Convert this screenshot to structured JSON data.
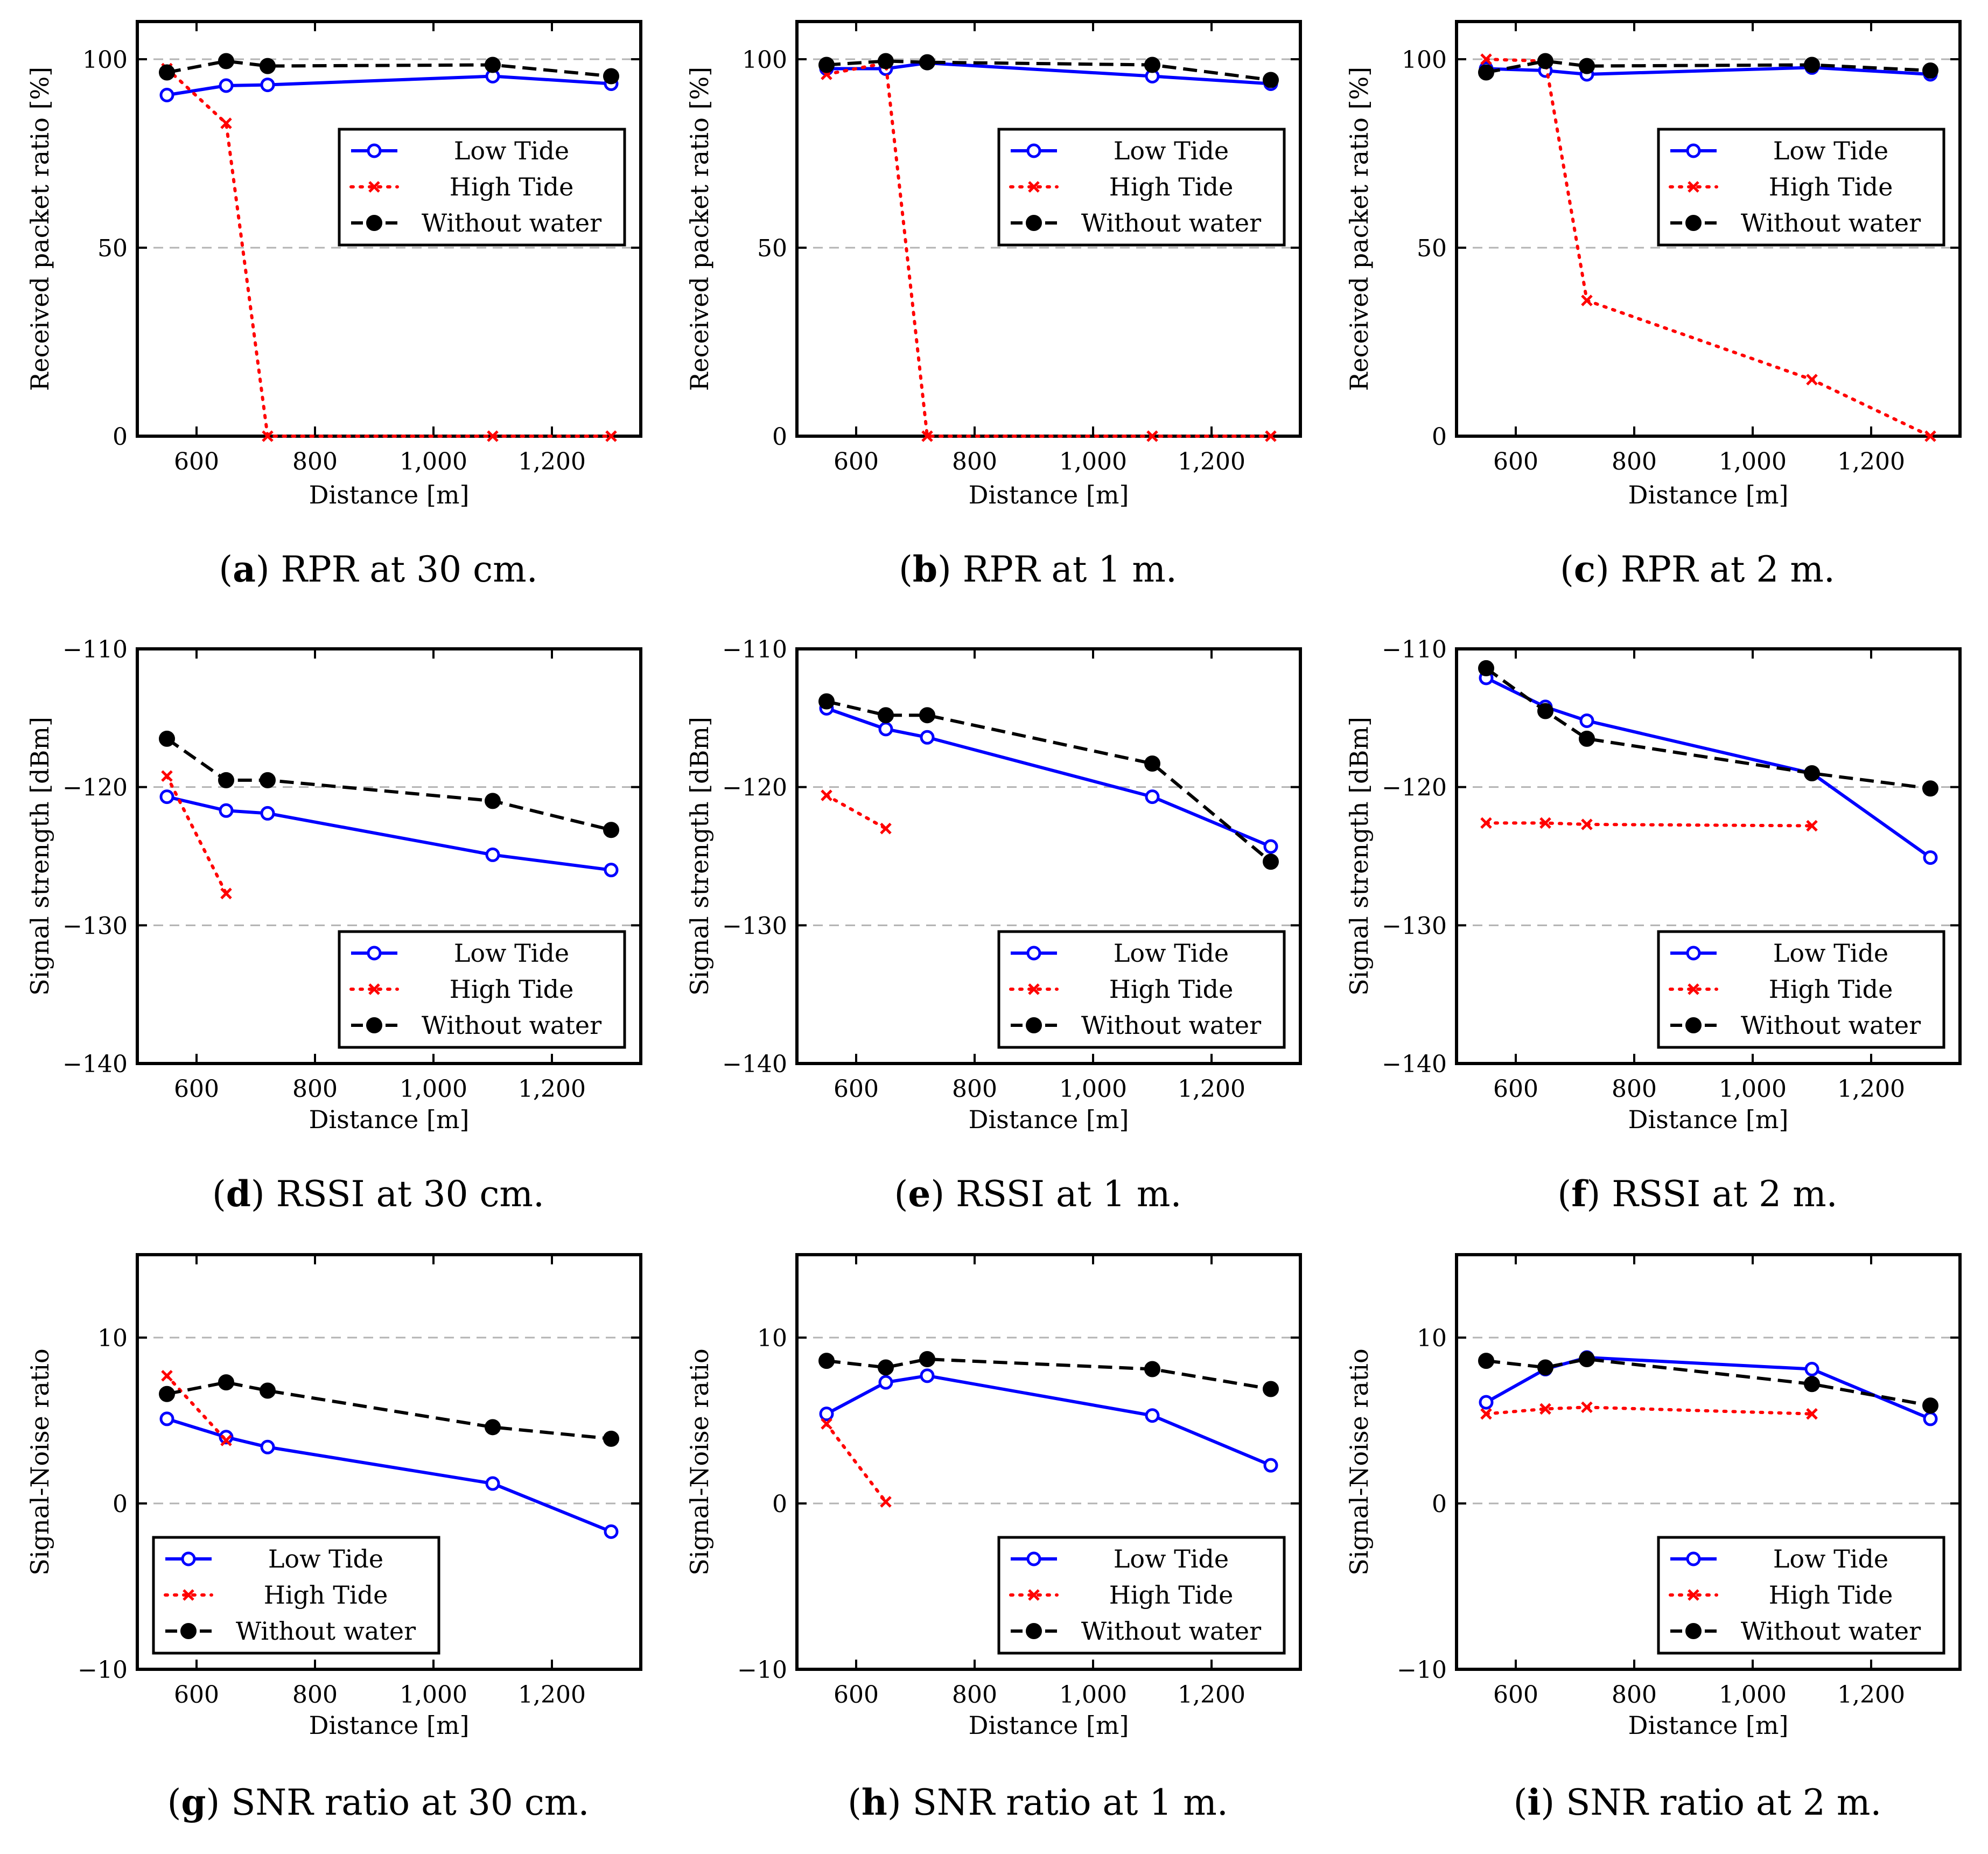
{
  "colors": {
    "low_tide": "#0000ff",
    "high_tide": "#ff0000",
    "without_water": "#000000",
    "grid": "#b3b3b3"
  },
  "legend_labels": [
    "Low Tide",
    "High Tide",
    "Without water"
  ],
  "chart_data": [
    {
      "id": "a",
      "type": "line",
      "caption": {
        "letter": "a",
        "text": ") RPR at 30 cm."
      },
      "xlabel": "Distance [m]",
      "ylabel": "Received packet ratio [%]",
      "xlim": [
        500,
        1350
      ],
      "ylim": [
        0,
        110
      ],
      "xticks": [
        {
          "value": 600,
          "label": "600"
        },
        {
          "value": 800,
          "label": "800"
        },
        {
          "value": 1000,
          "label": "1,000"
        },
        {
          "value": 1200,
          "label": "1,200"
        }
      ],
      "yticks": [
        {
          "value": 0,
          "label": "0"
        },
        {
          "value": 50,
          "label": "50"
        },
        {
          "value": 100,
          "label": "100"
        }
      ],
      "legend_position": "upper-right",
      "series": [
        {
          "name": "Low Tide",
          "x": [
            550,
            650,
            720,
            1100,
            1300
          ],
          "y": [
            90.5,
            93,
            93.2,
            95.5,
            93.5
          ]
        },
        {
          "name": "High Tide",
          "x": [
            550,
            650,
            720,
            1100,
            1300
          ],
          "y": [
            97.5,
            83,
            0,
            0,
            0
          ]
        },
        {
          "name": "Without water",
          "x": [
            550,
            650,
            720,
            1100,
            1300
          ],
          "y": [
            96.5,
            99.5,
            98.2,
            98.5,
            95.5
          ]
        }
      ]
    },
    {
      "id": "b",
      "type": "line",
      "caption": {
        "letter": "b",
        "text": ") RPR at 1 m."
      },
      "xlabel": "Distance [m]",
      "ylabel": "Received packet ratio [%]",
      "xlim": [
        500,
        1350
      ],
      "ylim": [
        0,
        110
      ],
      "xticks": [
        {
          "value": 600,
          "label": "600"
        },
        {
          "value": 800,
          "label": "800"
        },
        {
          "value": 1000,
          "label": "1,000"
        },
        {
          "value": 1200,
          "label": "1,200"
        }
      ],
      "yticks": [
        {
          "value": 0,
          "label": "0"
        },
        {
          "value": 50,
          "label": "50"
        },
        {
          "value": 100,
          "label": "100"
        }
      ],
      "legend_position": "upper-right",
      "series": [
        {
          "name": "Low Tide",
          "x": [
            550,
            650,
            720,
            1100,
            1300
          ],
          "y": [
            97.5,
            97.5,
            99,
            95.5,
            93.5
          ]
        },
        {
          "name": "High Tide",
          "x": [
            550,
            650,
            720,
            1100,
            1300
          ],
          "y": [
            96,
            99,
            0,
            0,
            0
          ]
        },
        {
          "name": "Without water",
          "x": [
            550,
            650,
            720,
            1100,
            1300
          ],
          "y": [
            98.5,
            99.5,
            99.2,
            98.5,
            94.5
          ]
        }
      ]
    },
    {
      "id": "c",
      "type": "line",
      "caption": {
        "letter": "c",
        "text": ") RPR at 2 m."
      },
      "xlabel": "Distance [m]",
      "ylabel": "Received packet ratio [%]",
      "xlim": [
        500,
        1350
      ],
      "ylim": [
        0,
        110
      ],
      "xticks": [
        {
          "value": 600,
          "label": "600"
        },
        {
          "value": 800,
          "label": "800"
        },
        {
          "value": 1000,
          "label": "1,000"
        },
        {
          "value": 1200,
          "label": "1,200"
        }
      ],
      "yticks": [
        {
          "value": 0,
          "label": "0"
        },
        {
          "value": 50,
          "label": "50"
        },
        {
          "value": 100,
          "label": "100"
        }
      ],
      "legend_position": "upper-right",
      "series": [
        {
          "name": "Low Tide",
          "x": [
            550,
            650,
            720,
            1100,
            1300
          ],
          "y": [
            97.5,
            97,
            96,
            97.8,
            96
          ]
        },
        {
          "name": "High Tide",
          "x": [
            550,
            650,
            720,
            1100,
            1300
          ],
          "y": [
            100,
            99.5,
            36,
            15,
            0
          ]
        },
        {
          "name": "Without water",
          "x": [
            550,
            650,
            720,
            1100,
            1300
          ],
          "y": [
            96.5,
            99.5,
            98.2,
            98.5,
            97
          ]
        }
      ]
    },
    {
      "id": "d",
      "type": "line",
      "caption": {
        "letter": "d",
        "text": ") RSSI at 30 cm."
      },
      "xlabel": "Distance [m]",
      "ylabel": "Signal strength [dBm]",
      "xlim": [
        500,
        1350
      ],
      "ylim": [
        -140,
        -110
      ],
      "xticks": [
        {
          "value": 600,
          "label": "600"
        },
        {
          "value": 800,
          "label": "800"
        },
        {
          "value": 1000,
          "label": "1,000"
        },
        {
          "value": 1200,
          "label": "1,200"
        }
      ],
      "yticks": [
        {
          "value": -140,
          "label": "−140"
        },
        {
          "value": -130,
          "label": "−130"
        },
        {
          "value": -120,
          "label": "−120"
        },
        {
          "value": -110,
          "label": "−110"
        }
      ],
      "legend_position": "lower-right",
      "series": [
        {
          "name": "Low Tide",
          "x": [
            550,
            650,
            720,
            1100,
            1300
          ],
          "y": [
            -120.7,
            -121.7,
            -121.9,
            -124.9,
            -126
          ]
        },
        {
          "name": "High Tide",
          "x": [
            550,
            650
          ],
          "y": [
            -119.2,
            -127.7
          ]
        },
        {
          "name": "Without water",
          "x": [
            550,
            650,
            720,
            1100,
            1300
          ],
          "y": [
            -116.5,
            -119.5,
            -119.5,
            -121,
            -123.1
          ]
        }
      ]
    },
    {
      "id": "e",
      "type": "line",
      "caption": {
        "letter": "e",
        "text": ") RSSI at 1 m."
      },
      "xlabel": "Distance [m]",
      "ylabel": "Signal strength [dBm]",
      "xlim": [
        500,
        1350
      ],
      "ylim": [
        -140,
        -110
      ],
      "xticks": [
        {
          "value": 600,
          "label": "600"
        },
        {
          "value": 800,
          "label": "800"
        },
        {
          "value": 1000,
          "label": "1,000"
        },
        {
          "value": 1200,
          "label": "1,200"
        }
      ],
      "yticks": [
        {
          "value": -140,
          "label": "−140"
        },
        {
          "value": -130,
          "label": "−130"
        },
        {
          "value": -120,
          "label": "−120"
        },
        {
          "value": -110,
          "label": "−110"
        }
      ],
      "legend_position": "lower-right",
      "series": [
        {
          "name": "Low Tide",
          "x": [
            550,
            650,
            720,
            1100,
            1300
          ],
          "y": [
            -114.3,
            -115.8,
            -116.4,
            -120.7,
            -124.3
          ]
        },
        {
          "name": "High Tide",
          "x": [
            550,
            650
          ],
          "y": [
            -120.6,
            -123
          ]
        },
        {
          "name": "Without water",
          "x": [
            550,
            650,
            720,
            1100,
            1300
          ],
          "y": [
            -113.8,
            -114.8,
            -114.8,
            -118.3,
            -125.4
          ]
        }
      ]
    },
    {
      "id": "f",
      "type": "line",
      "caption": {
        "letter": "f",
        "text": ") RSSI at 2 m."
      },
      "xlabel": "Distance [m]",
      "ylabel": "Signal strength [dBm]",
      "xlim": [
        500,
        1350
      ],
      "ylim": [
        -140,
        -110
      ],
      "xticks": [
        {
          "value": 600,
          "label": "600"
        },
        {
          "value": 800,
          "label": "800"
        },
        {
          "value": 1000,
          "label": "1,000"
        },
        {
          "value": 1200,
          "label": "1,200"
        }
      ],
      "yticks": [
        {
          "value": -140,
          "label": "−140"
        },
        {
          "value": -130,
          "label": "−130"
        },
        {
          "value": -120,
          "label": "−120"
        },
        {
          "value": -110,
          "label": "−110"
        }
      ],
      "legend_position": "lower-right",
      "series": [
        {
          "name": "Low Tide",
          "x": [
            550,
            650,
            720,
            1100,
            1300
          ],
          "y": [
            -112.1,
            -114.2,
            -115.2,
            -119,
            -125.1
          ]
        },
        {
          "name": "High Tide",
          "x": [
            550,
            650,
            720,
            1100
          ],
          "y": [
            -122.6,
            -122.6,
            -122.7,
            -122.8
          ]
        },
        {
          "name": "Without water",
          "x": [
            550,
            650,
            720,
            1100,
            1300
          ],
          "y": [
            -111.4,
            -114.5,
            -116.5,
            -119,
            -120.1
          ]
        }
      ]
    },
    {
      "id": "g",
      "type": "line",
      "caption": {
        "letter": "g",
        "text": ") SNR ratio at 30 cm."
      },
      "xlabel": "Distance [m]",
      "ylabel": "Signal-Noise ratio",
      "xlim": [
        500,
        1350
      ],
      "ylim": [
        -10,
        15
      ],
      "xticks": [
        {
          "value": 600,
          "label": "600"
        },
        {
          "value": 800,
          "label": "800"
        },
        {
          "value": 1000,
          "label": "1,000"
        },
        {
          "value": 1200,
          "label": "1,200"
        }
      ],
      "yticks": [
        {
          "value": -10,
          "label": "−10"
        },
        {
          "value": 0,
          "label": "0"
        },
        {
          "value": 10,
          "label": "10"
        }
      ],
      "legend_position": "lower-left",
      "series": [
        {
          "name": "Low Tide",
          "x": [
            550,
            650,
            720,
            1100,
            1300
          ],
          "y": [
            5.1,
            4,
            3.4,
            1.2,
            -1.7
          ]
        },
        {
          "name": "High Tide",
          "x": [
            550,
            650
          ],
          "y": [
            7.7,
            3.8
          ]
        },
        {
          "name": "Without water",
          "x": [
            550,
            650,
            720,
            1100,
            1300
          ],
          "y": [
            6.6,
            7.3,
            6.8,
            4.6,
            3.9
          ]
        }
      ]
    },
    {
      "id": "h",
      "type": "line",
      "caption": {
        "letter": "h",
        "text": ") SNR ratio at 1 m."
      },
      "xlabel": "Distance [m]",
      "ylabel": "Signal-Noise ratio",
      "xlim": [
        500,
        1350
      ],
      "ylim": [
        -10,
        15
      ],
      "xticks": [
        {
          "value": 600,
          "label": "600"
        },
        {
          "value": 800,
          "label": "800"
        },
        {
          "value": 1000,
          "label": "1,000"
        },
        {
          "value": 1200,
          "label": "1,200"
        }
      ],
      "yticks": [
        {
          "value": -10,
          "label": "−10"
        },
        {
          "value": 0,
          "label": "0"
        },
        {
          "value": 10,
          "label": "10"
        }
      ],
      "legend_position": "lower-right",
      "series": [
        {
          "name": "Low Tide",
          "x": [
            550,
            650,
            720,
            1100,
            1300
          ],
          "y": [
            5.4,
            7.3,
            7.7,
            5.3,
            2.3
          ]
        },
        {
          "name": "High Tide",
          "x": [
            550,
            650
          ],
          "y": [
            4.8,
            0.1
          ]
        },
        {
          "name": "Without water",
          "x": [
            550,
            650,
            720,
            1100,
            1300
          ],
          "y": [
            8.6,
            8.2,
            8.7,
            8.1,
            6.9
          ]
        }
      ]
    },
    {
      "id": "i",
      "type": "line",
      "caption": {
        "letter": "i",
        "text": ") SNR ratio at 2 m."
      },
      "xlabel": "Distance [m]",
      "ylabel": "Signal-Noise ratio",
      "xlim": [
        500,
        1350
      ],
      "ylim": [
        -10,
        15
      ],
      "xticks": [
        {
          "value": 600,
          "label": "600"
        },
        {
          "value": 800,
          "label": "800"
        },
        {
          "value": 1000,
          "label": "1,000"
        },
        {
          "value": 1200,
          "label": "1,200"
        }
      ],
      "yticks": [
        {
          "value": -10,
          "label": "−10"
        },
        {
          "value": 0,
          "label": "0"
        },
        {
          "value": 10,
          "label": "10"
        }
      ],
      "legend_position": "lower-right",
      "series": [
        {
          "name": "Low Tide",
          "x": [
            550,
            650,
            720,
            1100,
            1300
          ],
          "y": [
            6.1,
            8.1,
            8.8,
            8.1,
            5.1
          ]
        },
        {
          "name": "High Tide",
          "x": [
            550,
            650,
            720,
            1100
          ],
          "y": [
            5.4,
            5.7,
            5.8,
            5.4
          ]
        },
        {
          "name": "Without water",
          "x": [
            550,
            650,
            720,
            1100,
            1300
          ],
          "y": [
            8.6,
            8.2,
            8.7,
            7.2,
            5.9
          ]
        }
      ]
    }
  ]
}
